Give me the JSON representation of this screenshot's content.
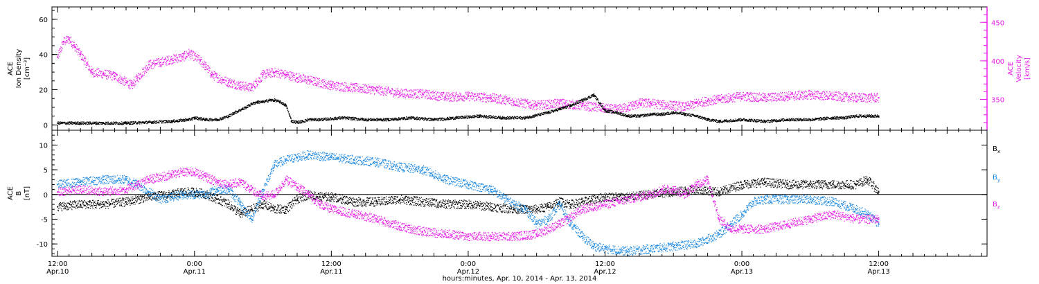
{
  "colors": {
    "black": "#000000",
    "magenta": "#e81ce8",
    "blue": "#1a87e0"
  },
  "x_axis": {
    "title": "hours:minutes, Apr. 10, 2014 - Apr. 13, 2014",
    "range_hours": [
      -0.5,
      81.5
    ],
    "ticks": [
      {
        "t": 0,
        "time": "12:00",
        "date": "Apr.10"
      },
      {
        "t": 12,
        "time": "0:00",
        "date": "Apr.11"
      },
      {
        "t": 24,
        "time": "12:00",
        "date": "Apr.11"
      },
      {
        "t": 36,
        "time": "0:00",
        "date": "Apr.12"
      },
      {
        "t": 48,
        "time": "12:00",
        "date": "Apr.12"
      },
      {
        "t": 60,
        "time": "0:00",
        "date": "Apr.13"
      },
      {
        "t": 72,
        "time": "12:00",
        "date": "Apr.13"
      }
    ]
  },
  "chart_data": [
    {
      "type": "scatter",
      "title": "",
      "xlabel": "hours:minutes, Apr. 10, 2014 - Apr. 13, 2014",
      "ylabel_left": [
        "ACE",
        "Ion Density",
        "[cm⁻³]"
      ],
      "ylabel_right": [
        "ACE",
        "Velocity",
        "[km/s]"
      ],
      "ylim_left": [
        -3,
        67
      ],
      "yticks_left": [
        0,
        20,
        40,
        60
      ],
      "ylim_right": [
        310,
        470
      ],
      "yticks_right": [
        350,
        400,
        450
      ],
      "series": [
        {
          "axis": "left",
          "color": "#000000",
          "x": [
            0,
            2,
            4,
            6,
            8,
            10,
            11.5,
            12,
            13,
            14,
            15,
            15.5,
            16.5,
            17,
            17.5,
            18,
            18.5,
            19,
            19.5,
            20,
            20.5,
            21,
            21.5,
            22,
            23,
            25,
            27,
            29,
            31,
            33,
            35,
            37,
            39,
            41,
            43,
            44,
            45,
            46,
            47,
            48,
            49,
            50,
            51,
            52,
            53,
            54,
            55,
            56,
            57,
            58,
            60,
            62,
            64,
            66,
            68,
            69,
            70,
            71,
            72
          ],
          "y": [
            1,
            1,
            1,
            1,
            1.5,
            2,
            3,
            4,
            3,
            3,
            5,
            7,
            10,
            12,
            13,
            13,
            14,
            14,
            13,
            11,
            2,
            1.5,
            2,
            3,
            3,
            4,
            3,
            3,
            4,
            3,
            4,
            5,
            4,
            4,
            7,
            9,
            11,
            14,
            17,
            8,
            7,
            5,
            5,
            6,
            6,
            7,
            6,
            5,
            3,
            2,
            3,
            2,
            3,
            3,
            4,
            4,
            5,
            5,
            5
          ]
        },
        {
          "axis": "right",
          "color": "#e81ce8",
          "x": [
            0,
            0.5,
            1,
            1.5,
            2,
            3,
            4,
            5,
            6,
            6.5,
            7,
            8,
            9,
            10,
            11,
            11.5,
            12.5,
            13,
            13.5,
            14,
            14.5,
            15,
            16,
            17,
            18,
            19,
            20,
            21,
            22,
            24,
            26,
            28,
            30,
            32,
            34,
            36,
            38,
            40,
            42,
            44,
            46,
            48,
            49,
            50,
            51,
            52,
            53,
            54,
            55,
            56,
            57,
            58,
            59,
            60,
            62,
            64,
            66,
            68,
            70,
            72
          ],
          "y": [
            405,
            425,
            428,
            418,
            408,
            385,
            383,
            380,
            372,
            368,
            378,
            395,
            398,
            402,
            405,
            410,
            400,
            392,
            382,
            378,
            375,
            372,
            368,
            365,
            382,
            385,
            382,
            378,
            375,
            368,
            365,
            362,
            358,
            357,
            353,
            354,
            352,
            347,
            342,
            345,
            342,
            338,
            337,
            340,
            345,
            345,
            343,
            342,
            340,
            345,
            348,
            350,
            352,
            354,
            352,
            354,
            356,
            354,
            352,
            352
          ]
        }
      ]
    },
    {
      "type": "scatter",
      "title": "",
      "ylabel_left": [
        "ACE",
        "B",
        "[nT]"
      ],
      "ylim_left": [
        -12.5,
        13
      ],
      "yticks_left": [
        -10,
        -5,
        0,
        5,
        10
      ],
      "zero_line": true,
      "legend": [
        "Bx",
        "By",
        "Bz"
      ],
      "legend_placement": "right",
      "series": [
        {
          "name": "Bx",
          "color": "#000000",
          "x": [
            0,
            2,
            4,
            6,
            8,
            10,
            11,
            12,
            13,
            14,
            15,
            16,
            17,
            18,
            19,
            20,
            21,
            22,
            23,
            24,
            25,
            26,
            28,
            30,
            32,
            34,
            36,
            38,
            40,
            42,
            43,
            44,
            45,
            46,
            48,
            50,
            52,
            54,
            56,
            58,
            60,
            62,
            64,
            66,
            68,
            70,
            71,
            72
          ],
          "y": [
            -2.5,
            -2,
            -2,
            -1.5,
            -0.5,
            0,
            0.5,
            0.5,
            0,
            -1,
            -2,
            -4,
            -3,
            -2,
            -3,
            -3,
            -1,
            0,
            -0.5,
            -0.5,
            -1,
            -1.5,
            -1.5,
            -1,
            -1.5,
            -2,
            -2,
            -2.5,
            -3,
            -3,
            -2.5,
            -1.5,
            -2,
            -1.5,
            -0.5,
            -0.5,
            0,
            0.5,
            1,
            0.5,
            2,
            2.5,
            2,
            2,
            2,
            2,
            3,
            0.5
          ]
        },
        {
          "name": "By",
          "color": "#1a87e0",
          "x": [
            0,
            2,
            4,
            6,
            7,
            8,
            9,
            10,
            11,
            12,
            13,
            14,
            15,
            16,
            17,
            18,
            19,
            20,
            21,
            22,
            24,
            26,
            28,
            30,
            32,
            34,
            36,
            38,
            40,
            41,
            42,
            43,
            44,
            45,
            46,
            47,
            48,
            50,
            52,
            54,
            56,
            58,
            59,
            60,
            61,
            62,
            64,
            66,
            68,
            70,
            71,
            72
          ],
          "y": [
            2,
            2.5,
            3,
            3,
            2,
            0.5,
            -1,
            -0.5,
            0,
            0,
            0,
            1,
            1,
            -2,
            -5,
            1,
            6,
            7,
            7.5,
            8,
            7.5,
            7,
            6.5,
            5.5,
            5,
            3,
            2,
            1,
            -2,
            -3,
            -6,
            -5,
            -2,
            -6,
            -8.5,
            -10.5,
            -11,
            -11.5,
            -11,
            -10.5,
            -10,
            -8,
            -6,
            -4,
            -1.5,
            -1,
            -1,
            -1,
            -1.5,
            -3,
            -4,
            -6
          ]
        },
        {
          "name": "Bz",
          "color": "#e81ce8",
          "x": [
            0,
            2,
            4,
            6,
            7,
            8,
            10,
            11,
            12,
            13,
            14,
            15,
            16,
            17,
            18,
            19,
            20,
            21,
            22,
            23,
            24,
            26,
            28,
            30,
            32,
            34,
            36,
            38,
            40,
            42,
            44,
            46,
            48,
            50,
            52,
            53,
            54,
            55,
            56,
            57,
            58,
            59,
            60,
            62,
            64,
            66,
            68,
            70,
            72
          ],
          "y": [
            0.5,
            1,
            0.5,
            1,
            2,
            3,
            4,
            4.5,
            4.5,
            3.5,
            2.5,
            2,
            2.5,
            1,
            -0.5,
            0,
            3,
            1.5,
            0,
            -2,
            -3,
            -4,
            -5,
            -6.5,
            -7.5,
            -8,
            -8.5,
            -8.5,
            -8.5,
            -8,
            -6,
            -3,
            -2,
            -1,
            0,
            1,
            1,
            0,
            2,
            3,
            -5,
            -7,
            -7,
            -7,
            -6,
            -5,
            -4,
            -5,
            -5
          ]
        }
      ]
    }
  ]
}
